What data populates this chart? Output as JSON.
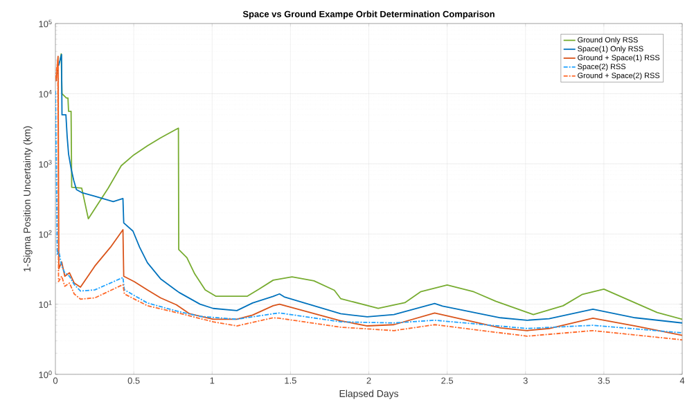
{
  "chart_data": {
    "type": "line",
    "title": "Space vs Ground Exampe Orbit Determination Comparison",
    "xlabel": "Elapsed Days",
    "ylabel": "1-Sigma Position Uncertainty (km)",
    "log": "y",
    "grid": true,
    "legend": "top right",
    "xlim": [
      0,
      4
    ],
    "xticks": [
      0,
      0.5,
      1,
      1.5,
      2,
      2.5,
      3,
      3.5,
      4
    ],
    "ylim": [
      1,
      100000
    ],
    "yticks": [
      {
        "value": 1,
        "label": "10$^{0}$"
      },
      {
        "value": 10,
        "label": "10$^{1}$"
      },
      {
        "value": 100,
        "label": "10$^{2}$"
      },
      {
        "value": 1000,
        "label": "10$^{3}$"
      },
      {
        "value": 10000,
        "label": "10$^{4}$"
      },
      {
        "value": 100000,
        "label": "10$^{5}$"
      }
    ],
    "series": [
      {
        "name": "Ground Only RSS",
        "color": "#77ac30",
        "line_style": "solid",
        "x": [
          0.03,
          0.037,
          0.042,
          0.07,
          0.08,
          0.084,
          0.1,
          0.104,
          0.168,
          0.185,
          0.21,
          0.336,
          0.42,
          0.5,
          0.587,
          0.671,
          0.785,
          0.787,
          0.839,
          0.889,
          0.956,
          1.023,
          1.09,
          1.225,
          1.3,
          1.39,
          1.51,
          1.65,
          1.78,
          1.82,
          2.06,
          2.23,
          2.33,
          2.5,
          2.67,
          2.81,
          3.05,
          3.24,
          3.36,
          3.5,
          3.84,
          4.0
        ],
        "values": [
          30000,
          37000,
          10000,
          8700,
          8700,
          5600,
          5600,
          465,
          450,
          300,
          165,
          447,
          940,
          1340,
          1810,
          2350,
          3230,
          60,
          46,
          27,
          16,
          13,
          13,
          13,
          16.4,
          22,
          24.5,
          21.5,
          15.8,
          12,
          8.7,
          10.5,
          15,
          18.8,
          15,
          11,
          7.1,
          9.5,
          13.7,
          16.4,
          7.6,
          6.1
        ]
      },
      {
        "name": "Space(1) Only RSS",
        "color": "#0072bd",
        "line_style": "solid",
        "x": [
          0.02,
          0.039,
          0.042,
          0.067,
          0.075,
          0.084,
          0.1,
          0.117,
          0.134,
          0.168,
          0.252,
          0.369,
          0.431,
          0.436,
          0.495,
          0.537,
          0.587,
          0.671,
          0.789,
          0.923,
          1.007,
          1.158,
          1.258,
          1.389,
          1.43,
          1.46,
          1.82,
          1.99,
          2.16,
          2.42,
          2.47,
          2.84,
          3.01,
          3.15,
          3.43,
          3.7,
          4.0
        ],
        "values": [
          25000,
          36000,
          5000,
          5000,
          2450,
          1380,
          860,
          580,
          430,
          390,
          345,
          290,
          320,
          144,
          110,
          65,
          39,
          23,
          14.7,
          10,
          8.7,
          8.1,
          10.4,
          12.9,
          14,
          12.7,
          7.3,
          6.6,
          7.1,
          10.2,
          9.4,
          6.4,
          5.9,
          6.2,
          8.5,
          6.4,
          5.4
        ]
      },
      {
        "name": "Ground + Space(1) RSS",
        "color": "#d95319",
        "line_style": "solid",
        "x": [
          0.005,
          0.017,
          0.022,
          0.04,
          0.06,
          0.09,
          0.12,
          0.16,
          0.252,
          0.352,
          0.431,
          0.436,
          0.503,
          0.587,
          0.671,
          0.772,
          0.856,
          1.007,
          1.158,
          1.258,
          1.389,
          1.43,
          1.82,
          1.99,
          2.16,
          2.42,
          2.84,
          3.01,
          3.15,
          3.43,
          3.7,
          4.0
        ],
        "values": [
          15000,
          34000,
          32,
          40,
          25,
          28,
          20,
          17.5,
          35,
          65,
          115,
          25,
          21,
          16,
          12.3,
          9.8,
          7.3,
          6.1,
          6.1,
          7,
          9.5,
          10,
          5.8,
          4.9,
          5.1,
          7.5,
          4.6,
          4.2,
          4.5,
          6.3,
          4.9,
          3.6
        ]
      },
      {
        "name": "Space(2) RSS",
        "color": "#1fa2ff",
        "line_style": "dashed",
        "x": [
          0.0,
          0.012,
          0.02,
          0.04,
          0.06,
          0.09,
          0.12,
          0.16,
          0.252,
          0.431,
          0.44,
          0.47,
          0.587,
          0.772,
          0.923,
          1.158,
          1.389,
          1.43,
          1.82,
          2.16,
          2.42,
          3.01,
          3.43,
          4.0
        ],
        "values": [
          11000,
          50,
          60,
          35,
          28,
          25,
          19,
          15.4,
          16,
          24,
          16,
          14.7,
          10.4,
          8,
          6.7,
          6.1,
          7.3,
          7.5,
          5.6,
          5.4,
          5.9,
          4.5,
          5,
          3.9
        ]
      },
      {
        "name": "Ground + Space(2) RSS",
        "color": "#ff6929",
        "line_style": "dashed",
        "x": [
          0.0,
          0.015,
          0.02,
          0.04,
          0.06,
          0.09,
          0.12,
          0.16,
          0.252,
          0.431,
          0.44,
          0.587,
          0.772,
          1.007,
          1.158,
          1.389,
          1.43,
          1.82,
          2.16,
          2.42,
          3.01,
          3.43,
          4.0
        ],
        "values": [
          16000,
          30000,
          21,
          25,
          18,
          20,
          14,
          11.8,
          12.3,
          19,
          14,
          9.5,
          7.6,
          5.6,
          4.9,
          6.4,
          6.3,
          4.7,
          4.2,
          5.1,
          3.5,
          4.2,
          3.1
        ]
      }
    ]
  }
}
